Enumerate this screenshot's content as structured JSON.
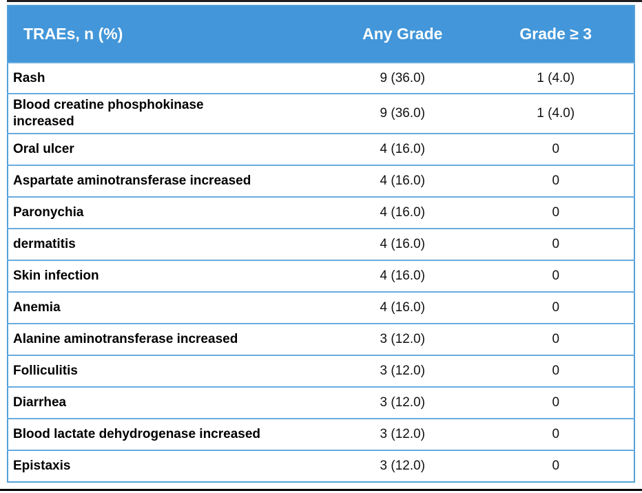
{
  "page": {
    "background_color": "#ffffff",
    "top_rule_color": "#1f1f1f",
    "bottom_rule_color": "#000000"
  },
  "table": {
    "header_background_color": "#4296d9",
    "header_text_color": "#ffffff",
    "border_color": "#54a1d8",
    "separator_color": "#68acde",
    "header": {
      "col1": "TRAEs, n (%)",
      "col2": "Any Grade",
      "col3": "Grade ≥ 3"
    },
    "rows": [
      {
        "label": "Rash",
        "any_grade": "9 (36.0)",
        "grade3": "1 (4.0)",
        "tall": false
      },
      {
        "label": "Blood creatine phosphokinase\nincreased",
        "any_grade": "9 (36.0)",
        "grade3": "1 (4.0)",
        "tall": true
      },
      {
        "label": "Oral ulcer",
        "any_grade": "4 (16.0)",
        "grade3": "0",
        "tall": false
      },
      {
        "label": "Aspartate aminotransferase increased",
        "any_grade": "4 (16.0)",
        "grade3": "0",
        "tall": false
      },
      {
        "label": "Paronychia",
        "any_grade": "4 (16.0)",
        "grade3": "0",
        "tall": false
      },
      {
        "label": "dermatitis",
        "any_grade": "4 (16.0)",
        "grade3": "0",
        "tall": false
      },
      {
        "label": "Skin infection",
        "any_grade": "4 (16.0)",
        "grade3": "0",
        "tall": false
      },
      {
        "label": "Anemia",
        "any_grade": "4 (16.0)",
        "grade3": "0",
        "tall": false
      },
      {
        "label": "Alanine aminotransferase increased",
        "any_grade": "3 (12.0)",
        "grade3": "0",
        "tall": false
      },
      {
        "label": "Folliculitis",
        "any_grade": "3 (12.0)",
        "grade3": "0",
        "tall": false
      },
      {
        "label": "Diarrhea",
        "any_grade": "3 (12.0)",
        "grade3": "0",
        "tall": false
      },
      {
        "label": "Blood lactate dehydrogenase increased",
        "any_grade": "3 (12.0)",
        "grade3": "0",
        "tall": false
      },
      {
        "label": "Epistaxis",
        "any_grade": "3 (12.0)",
        "grade3": "0",
        "tall": false
      }
    ]
  },
  "chart_data": {
    "type": "table",
    "title": "TRAEs, n (%)",
    "columns": [
      "TRAEs, n (%)",
      "Any Grade",
      "Grade ≥ 3"
    ],
    "rows": [
      [
        "Rash",
        "9 (36.0)",
        "1 (4.0)"
      ],
      [
        "Blood creatine phosphokinase increased",
        "9 (36.0)",
        "1 (4.0)"
      ],
      [
        "Oral ulcer",
        "4 (16.0)",
        "0"
      ],
      [
        "Aspartate aminotransferase increased",
        "4 (16.0)",
        "0"
      ],
      [
        "Paronychia",
        "4 (16.0)",
        "0"
      ],
      [
        "dermatitis",
        "4 (16.0)",
        "0"
      ],
      [
        "Skin infection",
        "4 (16.0)",
        "0"
      ],
      [
        "Anemia",
        "4 (16.0)",
        "0"
      ],
      [
        "Alanine aminotransferase increased",
        "3 (12.0)",
        "0"
      ],
      [
        "Folliculitis",
        "3 (12.0)",
        "0"
      ],
      [
        "Diarrhea",
        "3 (12.0)",
        "0"
      ],
      [
        "Blood lactate dehydrogenase increased",
        "3 (12.0)",
        "0"
      ],
      [
        "Epistaxis",
        "3 (12.0)",
        "0"
      ]
    ],
    "numeric": {
      "any_grade_n": [
        9,
        9,
        4,
        4,
        4,
        4,
        4,
        4,
        3,
        3,
        3,
        3,
        3
      ],
      "any_grade_pct": [
        36.0,
        36.0,
        16.0,
        16.0,
        16.0,
        16.0,
        16.0,
        16.0,
        12.0,
        12.0,
        12.0,
        12.0,
        12.0
      ],
      "grade_ge3_n": [
        1,
        1,
        0,
        0,
        0,
        0,
        0,
        0,
        0,
        0,
        0,
        0,
        0
      ],
      "grade_ge3_pct": [
        4.0,
        4.0,
        0,
        0,
        0,
        0,
        0,
        0,
        0,
        0,
        0,
        0,
        0
      ]
    },
    "accent_color": "#4296d9"
  }
}
